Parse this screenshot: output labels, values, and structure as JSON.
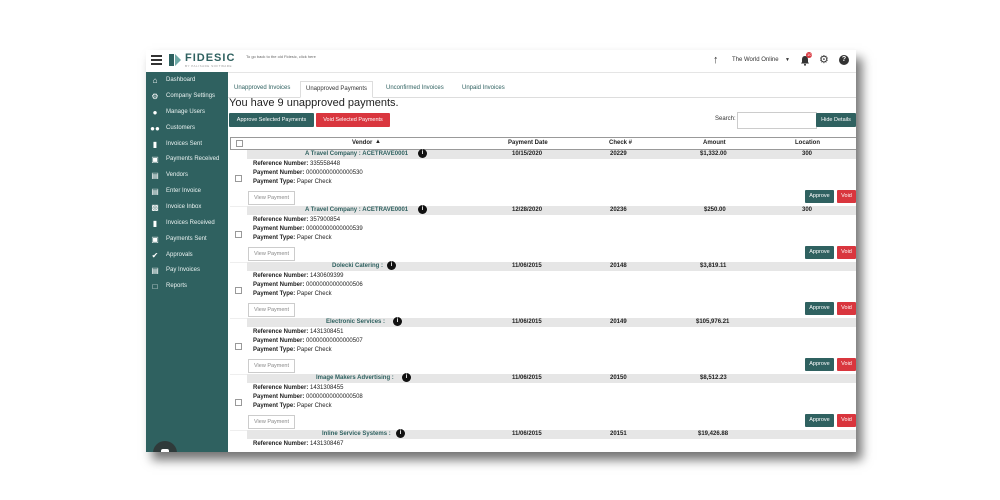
{
  "header": {
    "logo_text": "FIDESIC",
    "logo_sub": "BY PALISADE SOFTWARE",
    "old_link": "To go back to the old Fidesic, click here",
    "org_name": "The World Online",
    "notifications": "10"
  },
  "sidebar": {
    "items": [
      {
        "label": "Dashboard",
        "icon": "home-icon"
      },
      {
        "label": "Company Settings",
        "icon": "gear-icon"
      },
      {
        "label": "Manage Users",
        "icon": "user-icon"
      },
      {
        "label": "Customers",
        "icon": "users-icon"
      },
      {
        "label": "Invoices Sent",
        "icon": "document-icon"
      },
      {
        "label": "Payments Received",
        "icon": "money-icon"
      },
      {
        "label": "Vendors",
        "icon": "cart-icon"
      },
      {
        "label": "Enter Invoice",
        "icon": "cart-icon"
      },
      {
        "label": "Invoice Inbox",
        "icon": "inbox-icon"
      },
      {
        "label": "Invoices Received",
        "icon": "document-icon"
      },
      {
        "label": "Payments Sent",
        "icon": "money-icon"
      },
      {
        "label": "Approvals",
        "icon": "check-circle-icon"
      },
      {
        "label": "Pay Invoices",
        "icon": "cart-icon"
      },
      {
        "label": "Reports",
        "icon": "chart-icon"
      }
    ]
  },
  "tabs": [
    "Unapproved Invoices",
    "Unapproved Payments",
    "Unconfirmed Invoices",
    "Unpaid Invoices"
  ],
  "active_tab": "Unapproved Payments",
  "heading": "You have 9 unapproved payments.",
  "toolbar": {
    "approve_selected": "Approve Selected Payments",
    "void_selected": "Void Selected Payments",
    "search_label": "Search:",
    "hide_details": "Hide Details"
  },
  "table": {
    "columns": [
      "Vendor",
      "Payment Date",
      "Check #",
      "Amount",
      "Location"
    ],
    "ref_label": "Reference Number:",
    "pay_num_label": "Payment Number:",
    "pay_type_label": "Payment Type:",
    "view_label": "View Payment",
    "approve_label": "Approve",
    "void_label": "Void",
    "rows": [
      {
        "vendor": "A Travel Company : ACETRAVE0001",
        "date": "10/15/2020",
        "check": "20229",
        "amount": "$1,332.00",
        "location": "300",
        "ref": "335558448",
        "pay_num": "00000000000000530",
        "pay_type": "Paper Check"
      },
      {
        "vendor": "A Travel Company : ACETRAVE0001",
        "date": "12/28/2020",
        "check": "20236",
        "amount": "$250.00",
        "location": "300",
        "ref": "357900854",
        "pay_num": "00000000000000539",
        "pay_type": "Paper Check"
      },
      {
        "vendor": "Dolecki Catering :",
        "date": "11/06/2015",
        "check": "20148",
        "amount": "$3,819.11",
        "location": "",
        "ref": "1430609399",
        "pay_num": "00000000000000506",
        "pay_type": "Paper Check"
      },
      {
        "vendor": "Electronic Services :",
        "date": "11/06/2015",
        "check": "20149",
        "amount": "$105,976.21",
        "location": "",
        "ref": "1431308451",
        "pay_num": "00000000000000507",
        "pay_type": "Paper Check"
      },
      {
        "vendor": "Image Makers Advertising :",
        "date": "11/06/2015",
        "check": "20150",
        "amount": "$8,512.23",
        "location": "",
        "ref": "1431308455",
        "pay_num": "00000000000000508",
        "pay_type": "Paper Check"
      },
      {
        "vendor": "Inline Service Systems :",
        "date": "11/06/2015",
        "check": "20151",
        "amount": "$19,426.88",
        "location": "",
        "ref": "1431308467",
        "pay_num": "",
        "pay_type": ""
      }
    ]
  }
}
